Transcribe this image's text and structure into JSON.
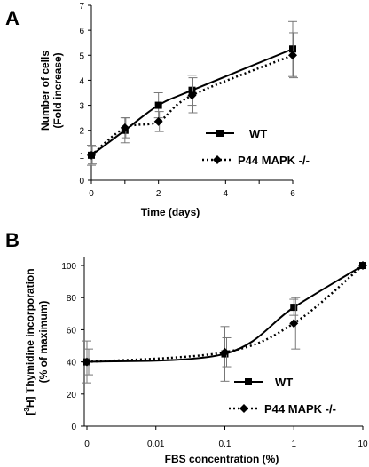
{
  "chart_data": [
    {
      "panel": "A",
      "type": "line",
      "xlabel": "Time (days)",
      "ylabel_lines": [
        "Number of cells",
        "(Fold increase)"
      ],
      "x_ticks": [
        "0",
        "2",
        "4",
        "6"
      ],
      "y_ticks": [
        "0",
        "1",
        "2",
        "3",
        "4",
        "5",
        "6",
        "7"
      ],
      "xlim": [
        0,
        6
      ],
      "ylim": [
        0,
        7
      ],
      "legend_position": "lower-right",
      "series": [
        {
          "name": "WT",
          "marker": "square",
          "line": "solid",
          "color": "#000000",
          "x": [
            0,
            1,
            2,
            3,
            6
          ],
          "y": [
            1.0,
            2.0,
            3.0,
            3.6,
            5.25
          ],
          "err": [
            0.4,
            0.5,
            0.5,
            0.6,
            1.1
          ]
        },
        {
          "name": "P44 MAPK -/-",
          "marker": "diamond",
          "line": "dotted",
          "color": "#000000",
          "x": [
            0,
            1,
            2,
            3,
            6
          ],
          "y": [
            1.0,
            2.1,
            2.35,
            3.4,
            5.0
          ],
          "err": [
            0.35,
            0.4,
            0.4,
            0.7,
            0.9
          ]
        }
      ]
    },
    {
      "panel": "B",
      "type": "line",
      "xlabel": "FBS concentration (%)",
      "ylabel_lines": [
        "[3H] Thymidine incorporation",
        "(% of maximum)"
      ],
      "x_scale": "log",
      "x_categories": [
        "0",
        "0.01",
        "0.1",
        "1",
        "10"
      ],
      "y_ticks": [
        "0",
        "20",
        "40",
        "60",
        "80",
        "100"
      ],
      "ylim": [
        0,
        105
      ],
      "legend_position": "lower-right",
      "series": [
        {
          "name": "WT",
          "marker": "square",
          "line": "solid",
          "color": "#000000",
          "x_index": [
            0,
            2,
            3,
            4
          ],
          "y": [
            40,
            45,
            74,
            100
          ],
          "err": [
            13,
            17,
            5,
            0
          ]
        },
        {
          "name": "P44 MAPK -/-",
          "marker": "diamond",
          "line": "dotted",
          "color": "#000000",
          "x_index": [
            0,
            2,
            3,
            4
          ],
          "y": [
            40,
            46,
            64,
            100
          ],
          "err": [
            8,
            9,
            16,
            0
          ]
        }
      ]
    }
  ]
}
